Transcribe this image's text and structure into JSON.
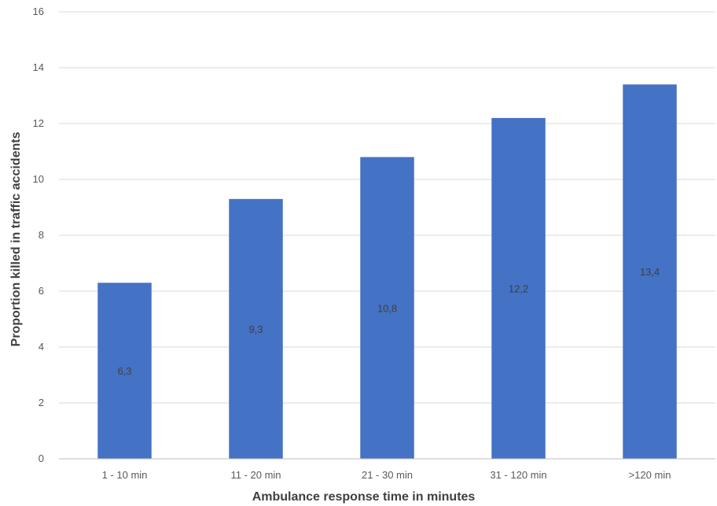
{
  "chart_data": {
    "type": "bar",
    "title": "",
    "xlabel": "Ambulance response time in minutes",
    "ylabel": "Proportion killed in traffic accidents",
    "categories": [
      "1 - 10 min",
      "11 - 20 min",
      "21 - 30 min",
      "31 - 120 min",
      ">120 min"
    ],
    "values": [
      6.3,
      9.3,
      10.8,
      12.2,
      13.4
    ],
    "data_labels": [
      "6,3",
      "9,3",
      "10,8",
      "12,2",
      "13,4"
    ],
    "ylim": [
      0,
      16
    ],
    "yticks": [
      0,
      2,
      4,
      6,
      8,
      10,
      12,
      14,
      16
    ],
    "ytick_labels": [
      "0",
      "2",
      "4",
      "6",
      "8",
      "10",
      "12",
      "14",
      "16"
    ],
    "grid": true,
    "legend": "none",
    "colors": {
      "bar": "#4472c4"
    }
  }
}
